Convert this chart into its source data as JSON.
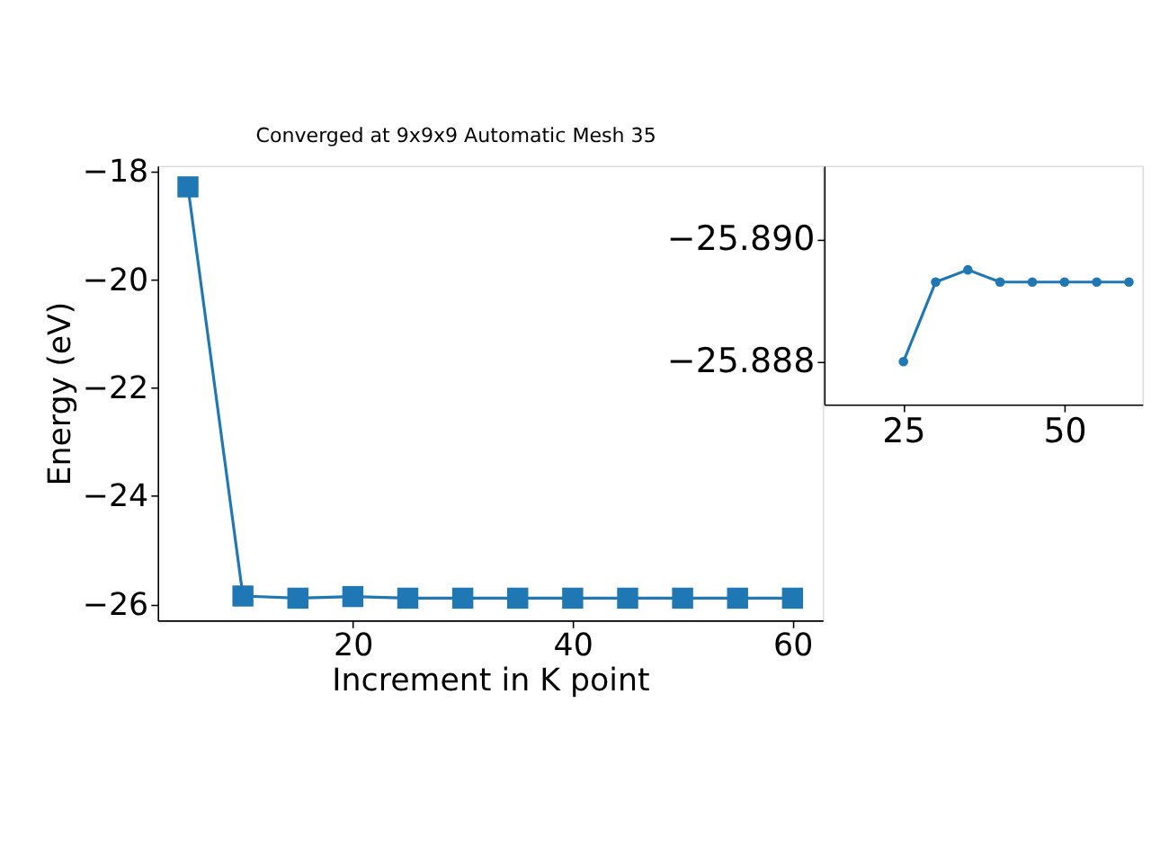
{
  "chart_data": [
    {
      "type": "line",
      "title": "Converged at 9x9x9 Automatic Mesh 35",
      "xlabel": "Increment in K point",
      "ylabel": "Energy (eV)",
      "x": [
        5,
        10,
        15,
        20,
        25,
        30,
        35,
        40,
        45,
        50,
        55,
        60
      ],
      "series": [
        {
          "color": "#1f77b4",
          "values": [
            -18.29,
            -25.85,
            -25.89,
            -25.86,
            -25.89,
            -25.89,
            -25.89,
            -25.89,
            -25.89,
            -25.89,
            -25.89,
            -25.89
          ]
        }
      ],
      "marker": "square",
      "line_style": "solid",
      "xlim": [
        2.25,
        62.75
      ],
      "ylim": [
        -26.3,
        -17.9
      ],
      "xticks": [
        20,
        40,
        60
      ],
      "yticks": [
        -18,
        -20,
        -22,
        -24,
        -26
      ]
    },
    {
      "type": "line",
      "x": [
        25,
        30,
        35,
        40,
        45,
        50,
        55,
        60
      ],
      "series": [
        {
          "color": "#1f77b4",
          "values": [
            -25.888,
            -25.8893,
            -25.8895,
            -25.8893,
            -25.8893,
            -25.8893,
            -25.8893,
            -25.8893
          ]
        }
      ],
      "marker": "circle",
      "line_style": "solid",
      "xlim": [
        12.7,
        62.1
      ],
      "ylim": [
        -25.8873,
        -25.8912
      ],
      "xticks": [
        25,
        50
      ],
      "yticks": [
        {
          "value": -25.89,
          "label": "−25.890"
        },
        {
          "value": -25.888,
          "label": "−25.888"
        }
      ]
    }
  ]
}
